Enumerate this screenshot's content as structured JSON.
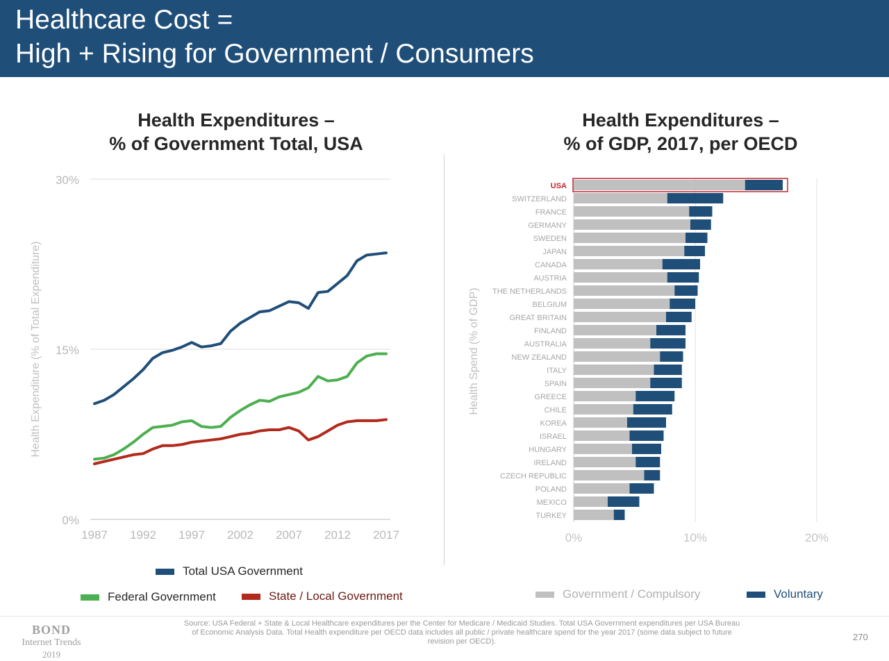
{
  "header": {
    "title_line1": "Healthcare Cost =",
    "title_line2": "High + Rising for Government / Consumers"
  },
  "colors": {
    "banner": "#1f4e79",
    "total_government": "#1f4e79",
    "federal": "#4caf50",
    "state_local": "#b22a1c",
    "compulsory": "#c0c0c0",
    "voluntary": "#1f4e79",
    "usa_highlight": "#c0272d"
  },
  "chart_data": [
    {
      "type": "line",
      "title_line1": "Health Expenditures –",
      "title_line2": "% of Government Total, USA",
      "ylabel": "Health Expenditure (% of Total Expenditure)",
      "xlabel": "",
      "x": [
        1987,
        1988,
        1989,
        1990,
        1991,
        1992,
        1993,
        1994,
        1995,
        1996,
        1997,
        1998,
        1999,
        2000,
        2001,
        2002,
        2003,
        2004,
        2005,
        2006,
        2007,
        2008,
        2009,
        2010,
        2011,
        2012,
        2013,
        2014,
        2015,
        2016,
        2017
      ],
      "xticks": [
        "1987",
        "1992",
        "1997",
        "2002",
        "2007",
        "2012",
        "2017"
      ],
      "xtick_values": [
        1987,
        1992,
        1997,
        2002,
        2007,
        2012,
        2017
      ],
      "yticks": [
        "0%",
        "15%",
        "30%"
      ],
      "ytick_values": [
        0,
        15,
        30
      ],
      "xlim": [
        1987,
        2017
      ],
      "ylim": [
        0,
        30
      ],
      "grid": true,
      "legend_position": "bottom",
      "series": [
        {
          "name": "Total USA Government",
          "color": "#1f4e79",
          "values": [
            10.2,
            10.5,
            11.0,
            11.7,
            12.4,
            13.2,
            14.2,
            14.7,
            14.9,
            15.2,
            15.6,
            15.2,
            15.3,
            15.5,
            16.6,
            17.3,
            17.8,
            18.3,
            18.4,
            18.8,
            19.2,
            19.1,
            18.6,
            20.0,
            20.1,
            20.8,
            21.5,
            22.8,
            23.3,
            23.4,
            23.5
          ]
        },
        {
          "name": "Federal Government",
          "color": "#4caf50",
          "values": [
            5.3,
            5.4,
            5.7,
            6.2,
            6.8,
            7.5,
            8.1,
            8.2,
            8.3,
            8.6,
            8.7,
            8.2,
            8.1,
            8.2,
            9.0,
            9.6,
            10.1,
            10.5,
            10.4,
            10.8,
            11.0,
            11.2,
            11.6,
            12.6,
            12.2,
            12.3,
            12.6,
            13.8,
            14.4,
            14.6,
            14.6
          ]
        },
        {
          "name": "State / Local Government",
          "color": "#b22a1c",
          "values": [
            4.9,
            5.1,
            5.3,
            5.5,
            5.7,
            5.8,
            6.2,
            6.5,
            6.5,
            6.6,
            6.8,
            6.9,
            7.0,
            7.1,
            7.3,
            7.5,
            7.6,
            7.8,
            7.9,
            7.9,
            8.1,
            7.8,
            7.0,
            7.3,
            7.8,
            8.3,
            8.6,
            8.7,
            8.7,
            8.7,
            8.8
          ]
        }
      ]
    },
    {
      "type": "bar",
      "orientation": "horizontal",
      "stacked": true,
      "title_line1": "Health Expenditures –",
      "title_line2": "% of GDP, 2017, per OECD",
      "ylabel": "Health Spend (% of GDP)",
      "xlabel": "",
      "xticks": [
        "0%",
        "10%",
        "20%"
      ],
      "xtick_values": [
        0,
        10,
        20
      ],
      "xlim": [
        0,
        20
      ],
      "grid": true,
      "legend_position": "bottom",
      "highlight_category": "USA",
      "categories": [
        "USA",
        "SWITZERLAND",
        "FRANCE",
        "GERMANY",
        "SWEDEN",
        "JAPAN",
        "CANADA",
        "AUSTRIA",
        "THE NETHERLANDS",
        "BELGIUM",
        "GREAT BRITAIN",
        "FINLAND",
        "AUSTRALIA",
        "NEW ZEALAND",
        "ITALY",
        "SPAIN",
        "GREECE",
        "CHILE",
        "KOREA",
        "ISRAEL",
        "HUNGARY",
        "IRELAND",
        "CZECH REPUBLIC",
        "POLAND",
        "MEXICO",
        "TURKEY"
      ],
      "series": [
        {
          "name": "Government / Compulsory",
          "color": "#c0c0c0",
          "values": [
            14.1,
            7.7,
            9.5,
            9.6,
            9.2,
            9.1,
            7.3,
            7.7,
            8.3,
            7.9,
            7.6,
            6.8,
            6.3,
            7.1,
            6.6,
            6.3,
            5.1,
            4.9,
            4.4,
            4.6,
            4.8,
            5.1,
            5.8,
            4.6,
            2.8,
            3.3
          ]
        },
        {
          "name": "Voluntary",
          "color": "#1f4e79",
          "values": [
            3.1,
            4.6,
            1.9,
            1.7,
            1.8,
            1.7,
            3.1,
            2.6,
            1.9,
            2.1,
            2.1,
            2.4,
            2.9,
            1.9,
            2.3,
            2.6,
            3.2,
            3.2,
            3.2,
            2.8,
            2.4,
            2.0,
            1.3,
            2.0,
            2.6,
            0.9
          ]
        }
      ]
    }
  ],
  "source": "Source: USA Federal + State & Local Healthcare expenditures per the Center for Medicare / Medicaid Studies.  Total USA Government expenditures per USA Bureau of Economic Analysis Data.  Total Health expenditure per OECD data includes all public / private healthcare spend for the year 2017 (some data subject to future revision per OECD).",
  "branding": {
    "line1": "BOND",
    "line2": "Internet Trends",
    "line3": "2019"
  },
  "page_number": "270"
}
